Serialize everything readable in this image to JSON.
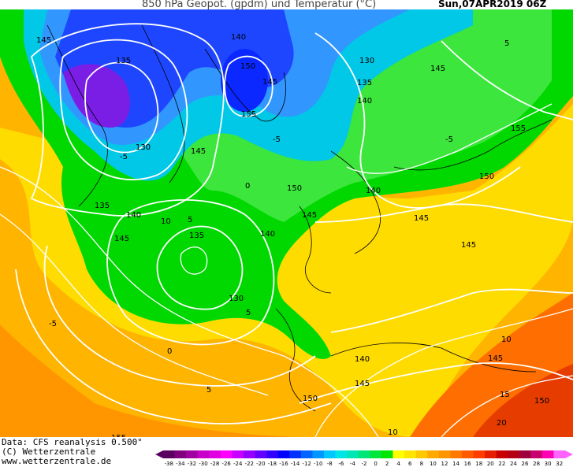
{
  "header": {
    "title": "850 hPa Geopot. (gpdm) und Temperatur (°C)",
    "valid": "Sun,07APR2019 06Z"
  },
  "credits": [
    "Data: CFS reanalysis 0.500°",
    "(C) Wetterzentrale",
    "www.wetterzentrale.de"
  ],
  "colorbar": {
    "ticks": [
      "-38",
      "-34",
      "-32",
      "-30",
      "-28",
      "-26",
      "-24",
      "-22",
      "-20",
      "-18",
      "-16",
      "-14",
      "-12",
      "-10",
      "-8",
      "-6",
      "-4",
      "-2",
      "0",
      "2",
      "4",
      "6",
      "8",
      "10",
      "12",
      "14",
      "16",
      "18",
      "20",
      "22",
      "24",
      "26",
      "28",
      "30",
      "32"
    ],
    "colors": [
      "#5a0060",
      "#800080",
      "#a000a0",
      "#c800c8",
      "#e000e0",
      "#ff00ff",
      "#c800ff",
      "#9600ff",
      "#6400ff",
      "#3200ff",
      "#0000ff",
      "#0032ff",
      "#0064ff",
      "#0096ff",
      "#00c8ff",
      "#00e6e6",
      "#00e6b4",
      "#00e678",
      "#00e63c",
      "#00e600",
      "#ffff00",
      "#ffe600",
      "#ffc800",
      "#ffaa00",
      "#ff9600",
      "#ff7800",
      "#ff5a00",
      "#ff3c00",
      "#e61e00",
      "#c80000",
      "#b40014",
      "#a0003c",
      "#c8006e",
      "#ff00b4",
      "#ff64ff"
    ]
  },
  "isohypse_labels": [
    {
      "text": "145"
    },
    {
      "text": "135"
    },
    {
      "text": "130"
    },
    {
      "text": "140"
    },
    {
      "text": "150"
    },
    {
      "text": "145"
    },
    {
      "text": "155"
    },
    {
      "text": "130"
    },
    {
      "text": "135"
    },
    {
      "text": "145"
    },
    {
      "text": "140"
    },
    {
      "text": "145"
    },
    {
      "text": "150"
    },
    {
      "text": "140"
    },
    {
      "text": "145"
    },
    {
      "text": "155"
    },
    {
      "text": "150"
    },
    {
      "text": "135"
    },
    {
      "text": "140"
    },
    {
      "text": "145"
    },
    {
      "text": "140"
    },
    {
      "text": "145"
    },
    {
      "text": "130"
    },
    {
      "text": "140"
    },
    {
      "text": "145"
    },
    {
      "text": "150"
    },
    {
      "text": "155"
    },
    {
      "text": "145"
    },
    {
      "text": "150"
    },
    {
      "text": "135"
    },
    {
      "text": "145"
    }
  ],
  "isotherm_labels": [
    {
      "text": "-5"
    },
    {
      "text": "-5"
    },
    {
      "text": "0"
    },
    {
      "text": "10"
    },
    {
      "text": "5"
    },
    {
      "text": "-5"
    },
    {
      "text": "5"
    },
    {
      "text": "0"
    },
    {
      "text": "5"
    },
    {
      "text": "10"
    },
    {
      "text": "15"
    },
    {
      "text": "20"
    },
    {
      "text": "10"
    },
    {
      "text": "5"
    },
    {
      "text": "-5"
    }
  ]
}
